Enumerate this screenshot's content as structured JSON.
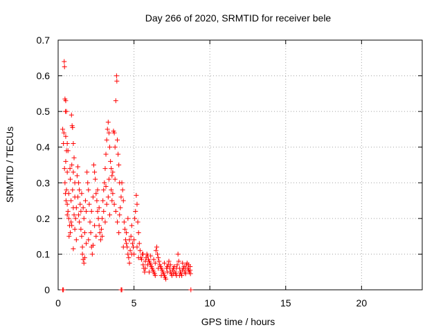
{
  "chart_data": {
    "type": "scatter",
    "title": "Day 266 of 2020, SRMTID for receiver bele",
    "xlabel": "GPS time / hours",
    "ylabel": "SRMTID / TECUs",
    "xlim": [
      0,
      24
    ],
    "ylim": [
      0,
      0.7
    ],
    "xticks": [
      0,
      5,
      10,
      15,
      20
    ],
    "xtick_labels": [
      "0",
      "5",
      "10",
      "15",
      "20"
    ],
    "yticks": [
      0,
      0.1,
      0.2,
      0.3,
      0.4,
      0.5,
      0.6,
      0.7
    ],
    "ytick_labels": [
      "0",
      "0.1",
      "0.2",
      "0.3",
      "0.4",
      "0.5",
      "0.6",
      "0.7"
    ],
    "grid": true,
    "marker": "+",
    "color": "#ff0000",
    "series": [
      {
        "name": "SRMTID",
        "points": [
          [
            0.3,
            0.0
          ],
          [
            0.35,
            0.0
          ],
          [
            4.15,
            0.0
          ],
          [
            4.2,
            0.0
          ],
          [
            8.75,
            0.0
          ],
          [
            0.4,
            0.64
          ],
          [
            0.42,
            0.625
          ],
          [
            0.45,
            0.535
          ],
          [
            0.5,
            0.53
          ],
          [
            0.48,
            0.5
          ],
          [
            0.55,
            0.5
          ],
          [
            0.3,
            0.45
          ],
          [
            0.38,
            0.44
          ],
          [
            0.5,
            0.43
          ],
          [
            0.6,
            0.41
          ],
          [
            0.35,
            0.41
          ],
          [
            0.55,
            0.39
          ],
          [
            0.65,
            0.39
          ],
          [
            0.5,
            0.36
          ],
          [
            0.42,
            0.34
          ],
          [
            0.6,
            0.33
          ],
          [
            0.45,
            0.3
          ],
          [
            0.55,
            0.28
          ],
          [
            0.48,
            0.27
          ],
          [
            0.52,
            0.25
          ],
          [
            0.6,
            0.24
          ],
          [
            0.65,
            0.22
          ],
          [
            0.7,
            0.2
          ],
          [
            0.75,
            0.18
          ],
          [
            0.8,
            0.16
          ],
          [
            0.72,
            0.15
          ],
          [
            0.85,
            0.19
          ],
          [
            0.88,
            0.49
          ],
          [
            0.92,
            0.46
          ],
          [
            0.95,
            0.455
          ],
          [
            1.0,
            0.41
          ],
          [
            1.05,
            0.37
          ],
          [
            0.9,
            0.35
          ],
          [
            1.0,
            0.33
          ],
          [
            0.8,
            0.31
          ],
          [
            1.1,
            0.3
          ],
          [
            0.95,
            0.28
          ],
          [
            1.1,
            0.26
          ],
          [
            0.85,
            0.25
          ],
          [
            1.0,
            0.23
          ],
          [
            1.05,
            0.21
          ],
          [
            1.15,
            0.2
          ],
          [
            0.9,
            0.18
          ],
          [
            1.1,
            0.17
          ],
          [
            1.0,
            0.115
          ],
          [
            1.2,
            0.14
          ],
          [
            1.25,
            0.32
          ],
          [
            1.3,
            0.345
          ],
          [
            1.35,
            0.3
          ],
          [
            1.4,
            0.28
          ],
          [
            1.3,
            0.26
          ],
          [
            1.45,
            0.24
          ],
          [
            1.5,
            0.22
          ],
          [
            1.4,
            0.19
          ],
          [
            1.5,
            0.17
          ],
          [
            1.55,
            0.15
          ],
          [
            1.6,
            0.1
          ],
          [
            1.65,
            0.085
          ],
          [
            1.7,
            0.075
          ],
          [
            1.75,
            0.09
          ],
          [
            1.6,
            0.12
          ],
          [
            1.7,
            0.2
          ],
          [
            1.8,
            0.25
          ],
          [
            1.9,
            0.33
          ],
          [
            1.95,
            0.3
          ],
          [
            2.0,
            0.28
          ],
          [
            2.05,
            0.24
          ],
          [
            1.85,
            0.22
          ],
          [
            2.1,
            0.19
          ],
          [
            2.15,
            0.16
          ],
          [
            2.0,
            0.14
          ],
          [
            2.2,
            0.12
          ],
          [
            2.25,
            0.1
          ],
          [
            2.3,
            0.125
          ],
          [
            2.35,
            0.35
          ],
          [
            2.4,
            0.33
          ],
          [
            2.45,
            0.31
          ],
          [
            2.5,
            0.27
          ],
          [
            2.55,
            0.25
          ],
          [
            2.6,
            0.22
          ],
          [
            2.65,
            0.2
          ],
          [
            2.7,
            0.18
          ],
          [
            2.75,
            0.16
          ],
          [
            2.5,
            0.15
          ],
          [
            2.8,
            0.14
          ],
          [
            2.85,
            0.17
          ],
          [
            2.9,
            0.2
          ],
          [
            2.95,
            0.25
          ],
          [
            3.0,
            0.28
          ],
          [
            3.05,
            0.3
          ],
          [
            3.1,
            0.34
          ],
          [
            3.15,
            0.38
          ],
          [
            3.2,
            0.42
          ],
          [
            3.25,
            0.45
          ],
          [
            3.3,
            0.47
          ],
          [
            3.35,
            0.44
          ],
          [
            3.4,
            0.4
          ],
          [
            3.45,
            0.36
          ],
          [
            3.5,
            0.34
          ],
          [
            3.55,
            0.32
          ],
          [
            3.6,
            0.33
          ],
          [
            3.65,
            0.445
          ],
          [
            3.7,
            0.44
          ],
          [
            3.75,
            0.4
          ],
          [
            3.8,
            0.53
          ],
          [
            3.85,
            0.6
          ],
          [
            3.87,
            0.585
          ],
          [
            3.9,
            0.42
          ],
          [
            3.95,
            0.38
          ],
          [
            4.0,
            0.35
          ],
          [
            4.05,
            0.3
          ],
          [
            3.2,
            0.24
          ],
          [
            3.0,
            0.22
          ],
          [
            3.3,
            0.26
          ],
          [
            3.4,
            0.21
          ],
          [
            3.6,
            0.27
          ],
          [
            3.7,
            0.24
          ],
          [
            3.8,
            0.22
          ],
          [
            3.9,
            0.19
          ],
          [
            4.0,
            0.16
          ],
          [
            4.1,
            0.23
          ],
          [
            4.15,
            0.26
          ],
          [
            4.2,
            0.3
          ],
          [
            4.25,
            0.28
          ],
          [
            4.3,
            0.25
          ],
          [
            4.35,
            0.19
          ],
          [
            4.4,
            0.17
          ],
          [
            4.45,
            0.14
          ],
          [
            4.5,
            0.13
          ],
          [
            4.55,
            0.12
          ],
          [
            4.6,
            0.1
          ],
          [
            4.65,
            0.09
          ],
          [
            4.7,
            0.075
          ],
          [
            4.75,
            0.11
          ],
          [
            4.8,
            0.15
          ],
          [
            4.85,
            0.18
          ],
          [
            4.9,
            0.13
          ],
          [
            4.95,
            0.12
          ],
          [
            5.0,
            0.1
          ],
          [
            5.05,
            0.2
          ],
          [
            5.1,
            0.22
          ],
          [
            5.15,
            0.265
          ],
          [
            5.2,
            0.24
          ],
          [
            5.25,
            0.19
          ],
          [
            5.3,
            0.16
          ],
          [
            5.35,
            0.13
          ],
          [
            5.4,
            0.11
          ],
          [
            5.45,
            0.09
          ],
          [
            5.5,
            0.085
          ],
          [
            5.55,
            0.1
          ],
          [
            5.6,
            0.07
          ],
          [
            5.65,
            0.06
          ],
          [
            5.7,
            0.05
          ],
          [
            5.75,
            0.08
          ],
          [
            5.8,
            0.09
          ],
          [
            5.85,
            0.1
          ],
          [
            5.9,
            0.095
          ],
          [
            5.95,
            0.085
          ],
          [
            6.0,
            0.08
          ],
          [
            6.05,
            0.075
          ],
          [
            6.1,
            0.07
          ],
          [
            6.15,
            0.065
          ],
          [
            6.2,
            0.06
          ],
          [
            6.25,
            0.055
          ],
          [
            6.3,
            0.05
          ],
          [
            6.35,
            0.045
          ],
          [
            6.4,
            0.04
          ],
          [
            6.45,
            0.11
          ],
          [
            6.5,
            0.12
          ],
          [
            6.55,
            0.1
          ],
          [
            6.6,
            0.09
          ],
          [
            6.65,
            0.08
          ],
          [
            6.7,
            0.07
          ],
          [
            6.75,
            0.065
          ],
          [
            6.8,
            0.06
          ],
          [
            6.85,
            0.055
          ],
          [
            6.9,
            0.05
          ],
          [
            6.95,
            0.045
          ],
          [
            7.0,
            0.04
          ],
          [
            7.05,
            0.035
          ],
          [
            7.1,
            0.03
          ],
          [
            7.15,
            0.06
          ],
          [
            7.2,
            0.065
          ],
          [
            7.25,
            0.07
          ],
          [
            7.3,
            0.08
          ],
          [
            7.35,
            0.06
          ],
          [
            7.4,
            0.05
          ],
          [
            7.45,
            0.045
          ],
          [
            7.5,
            0.04
          ],
          [
            7.55,
            0.055
          ],
          [
            7.6,
            0.06
          ],
          [
            7.65,
            0.065
          ],
          [
            7.7,
            0.05
          ],
          [
            7.75,
            0.045
          ],
          [
            7.8,
            0.04
          ],
          [
            7.85,
            0.07
          ],
          [
            7.9,
            0.1
          ],
          [
            7.95,
            0.08
          ],
          [
            8.0,
            0.06
          ],
          [
            8.05,
            0.05
          ],
          [
            8.1,
            0.045
          ],
          [
            8.15,
            0.04
          ],
          [
            8.2,
            0.055
          ],
          [
            8.25,
            0.06
          ],
          [
            8.3,
            0.065
          ],
          [
            8.35,
            0.05
          ],
          [
            8.4,
            0.045
          ],
          [
            8.45,
            0.07
          ],
          [
            8.5,
            0.075
          ],
          [
            8.55,
            0.06
          ],
          [
            8.6,
            0.055
          ],
          [
            8.65,
            0.05
          ],
          [
            8.7,
            0.065
          ],
          [
            8.72,
            0.045
          ],
          [
            0.6,
            0.21
          ],
          [
            0.7,
            0.27
          ],
          [
            0.78,
            0.34
          ],
          [
            1.2,
            0.23
          ],
          [
            1.35,
            0.21
          ],
          [
            1.55,
            0.27
          ],
          [
            1.65,
            0.23
          ],
          [
            1.75,
            0.16
          ],
          [
            1.85,
            0.13
          ],
          [
            2.2,
            0.22
          ],
          [
            2.3,
            0.26
          ],
          [
            2.4,
            0.18
          ],
          [
            2.6,
            0.28
          ],
          [
            2.7,
            0.23
          ],
          [
            2.9,
            0.15
          ],
          [
            3.1,
            0.19
          ],
          [
            3.15,
            0.29
          ],
          [
            3.35,
            0.31
          ],
          [
            3.5,
            0.28
          ],
          [
            3.55,
            0.25
          ],
          [
            3.75,
            0.31
          ],
          [
            4.05,
            0.21
          ],
          [
            4.3,
            0.12
          ],
          [
            4.5,
            0.16
          ],
          [
            4.6,
            0.2
          ],
          [
            4.7,
            0.14
          ],
          [
            4.85,
            0.1
          ],
          [
            5.0,
            0.14
          ],
          [
            5.2,
            0.12
          ],
          [
            5.3,
            0.09
          ],
          [
            5.6,
            0.1
          ],
          [
            5.75,
            0.06
          ],
          [
            5.9,
            0.07
          ],
          [
            6.0,
            0.05
          ],
          [
            6.1,
            0.095
          ],
          [
            6.3,
            0.085
          ],
          [
            6.4,
            0.075
          ],
          [
            6.6,
            0.06
          ],
          [
            6.8,
            0.04
          ],
          [
            7.0,
            0.075
          ],
          [
            7.2,
            0.05
          ],
          [
            7.4,
            0.07
          ],
          [
            7.6,
            0.045
          ],
          [
            7.8,
            0.06
          ],
          [
            8.0,
            0.04
          ],
          [
            8.2,
            0.075
          ],
          [
            8.4,
            0.06
          ],
          [
            8.6,
            0.07
          ],
          [
            8.7,
            0.055
          ]
        ]
      }
    ]
  }
}
